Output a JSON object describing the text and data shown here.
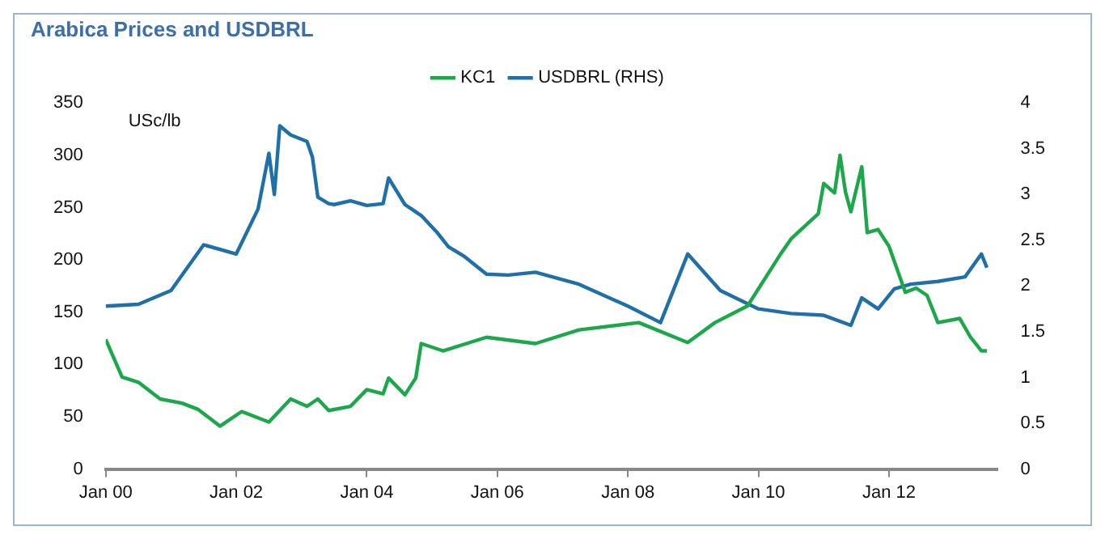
{
  "chart_data": {
    "type": "line",
    "title": "Arabica Prices and USDBRL",
    "ylabel": "USc/lb",
    "legend": "top",
    "grid": false,
    "marker": "none",
    "line_style": "solid",
    "xlim": [
      "2000-01",
      "2013-09"
    ],
    "xticks": [
      {
        "value": "2000-01",
        "label": "Jan 00"
      },
      {
        "value": "2002-01",
        "label": "Jan 02"
      },
      {
        "value": "2004-01",
        "label": "Jan 04"
      },
      {
        "value": "2006-01",
        "label": "Jan 06"
      },
      {
        "value": "2008-01",
        "label": "Jan 08"
      },
      {
        "value": "2010-01",
        "label": "Jan 10"
      },
      {
        "value": "2012-01",
        "label": "Jan 12"
      }
    ],
    "ylim": [
      0,
      350
    ],
    "yticks": [
      0,
      50,
      100,
      150,
      200,
      250,
      300,
      350
    ],
    "y2lim": [
      0,
      4
    ],
    "y2ticks": [
      0,
      0.5,
      1,
      1.5,
      2,
      2.5,
      3,
      3.5,
      4
    ],
    "series": [
      {
        "name": "KC1",
        "color": "#1aa84a",
        "x": [
          "2000-01",
          "2000-04",
          "2000-07",
          "2000-11",
          "2001-03",
          "2001-06",
          "2001-10",
          "2002-02",
          "2002-07",
          "2002-11",
          "2003-02",
          "2003-04",
          "2003-06",
          "2003-10",
          "2004-01",
          "2004-04",
          "2004-05",
          "2004-08",
          "2004-10",
          "2004-11",
          "2005-03",
          "2005-11",
          "2006-08",
          "2007-04",
          "2008-03",
          "2008-12",
          "2009-05",
          "2009-11",
          "2010-05",
          "2010-07",
          "2010-12",
          "2011-01",
          "2011-03",
          "2011-04",
          "2011-05",
          "2011-06",
          "2011-08",
          "2011-09",
          "2011-11",
          "2012-01",
          "2012-04",
          "2012-06",
          "2012-08",
          "2012-10",
          "2013-02",
          "2013-04",
          "2013-06",
          "2013-07"
        ],
        "values": [
          124,
          88,
          83,
          67,
          63,
          57,
          41,
          55,
          45,
          67,
          60,
          67,
          56,
          60,
          76,
          72,
          87,
          71,
          87,
          120,
          113,
          126,
          120,
          133,
          140,
          121,
          140,
          156,
          205,
          220,
          244,
          273,
          264,
          300,
          265,
          246,
          289,
          226,
          229,
          213,
          169,
          173,
          166,
          140,
          144,
          126,
          113,
          113
        ]
      },
      {
        "name": "USDBRL (RHS)",
        "color": "#1f6fa8",
        "axis": "y2",
        "x": [
          "2000-01",
          "2000-07",
          "2001-01",
          "2001-07",
          "2002-01",
          "2002-05",
          "2002-07",
          "2002-08",
          "2002-09",
          "2002-11",
          "2003-02",
          "2003-03",
          "2003-04",
          "2003-06",
          "2003-07",
          "2003-10",
          "2004-01",
          "2004-04",
          "2004-05",
          "2004-08",
          "2004-11",
          "2005-02",
          "2005-04",
          "2005-07",
          "2005-11",
          "2006-03",
          "2006-08",
          "2007-04",
          "2008-01",
          "2008-07",
          "2008-12",
          "2009-06",
          "2010-01",
          "2010-07",
          "2011-01",
          "2011-06",
          "2011-08",
          "2011-11",
          "2012-02",
          "2012-05",
          "2012-10",
          "2013-03",
          "2013-06",
          "2013-07"
        ],
        "values": [
          1.78,
          1.8,
          1.95,
          2.45,
          2.35,
          2.84,
          3.45,
          3.0,
          3.75,
          3.65,
          3.58,
          3.41,
          2.97,
          2.9,
          2.89,
          2.93,
          2.88,
          2.9,
          3.18,
          2.89,
          2.77,
          2.58,
          2.43,
          2.32,
          2.13,
          2.12,
          2.15,
          2.02,
          1.78,
          1.6,
          2.35,
          1.95,
          1.75,
          1.7,
          1.68,
          1.57,
          1.87,
          1.75,
          1.97,
          2.02,
          2.05,
          2.1,
          2.35,
          2.2
        ]
      }
    ]
  }
}
